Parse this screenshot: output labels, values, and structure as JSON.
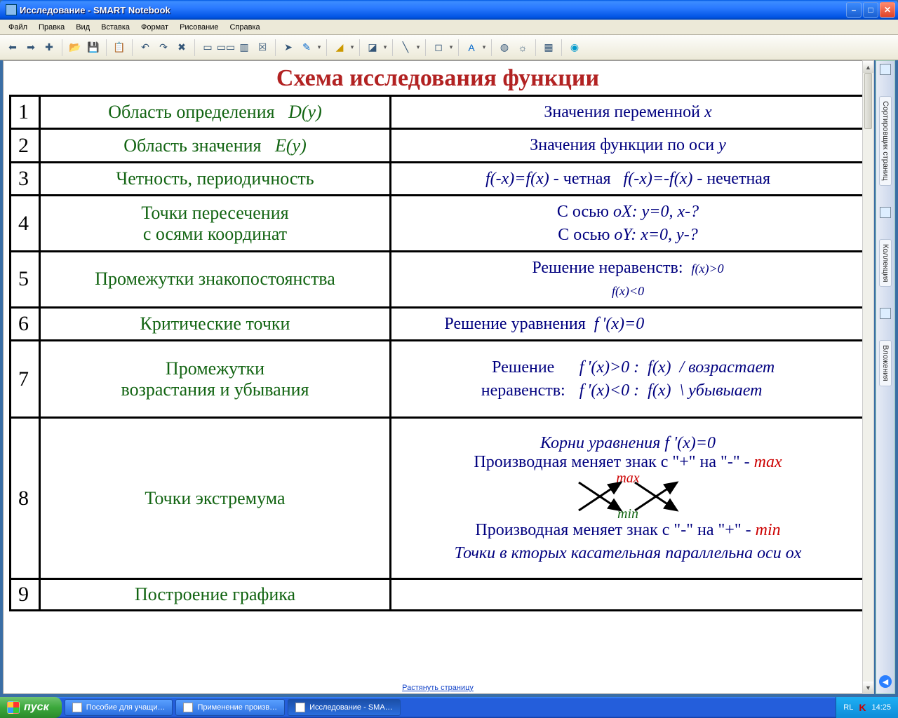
{
  "window": {
    "title": "Исследование  - SMART Notebook"
  },
  "menu": {
    "items": [
      "Файл",
      "Правка",
      "Вид",
      "Вставка",
      "Формат",
      "Рисование",
      "Справка"
    ]
  },
  "toolbar_icons": [
    "arrow-left-icon",
    "arrow-right-icon",
    "page-add-icon",
    "",
    "folder-open-icon",
    "save-icon",
    "",
    "paste-icon",
    "",
    "undo-icon",
    "redo-icon",
    "delete-icon",
    "",
    "screen-icon",
    "dual-screen-icon",
    "screen-shade-icon",
    "capture-icon",
    "",
    "pointer-icon",
    "pen-icon",
    "",
    "highlighter-icon",
    "",
    "eraser-icon",
    "",
    "line-icon",
    "",
    "shape-icon",
    "",
    "text-icon",
    "",
    "fill-icon",
    "properties-icon",
    "",
    "table-icon",
    "",
    "help-icon"
  ],
  "page": {
    "title": "Схема исследования функции",
    "stretch_label": "Растянуть страницу",
    "rows": [
      {
        "n": "1",
        "left": "Область определения",
        "left_formula": "D(y)",
        "right": "Значения переменной <span class='em'>x</span>"
      },
      {
        "n": "2",
        "left": "Область значения",
        "left_formula": "E(y)",
        "right": "Значения функции по оси <span class='em'>y</span>"
      },
      {
        "n": "3",
        "left": "Четность, периодичность",
        "right": "<span class='em'>f(-x)=f(x)</span> -  четная&nbsp;&nbsp;&nbsp;<span class='em'>f(-x)=-f(x)</span> -  нечетная"
      },
      {
        "n": "4",
        "left": "Точки пересечения<br>с осями координат",
        "right": "С осью <span class='em'>oX: y=0, x-?</span><br>С осью <span class='em'>oY: x=0, y-?</span>"
      },
      {
        "n": "5",
        "left": "Промежутки знакопостоянства",
        "right": "Решение неравенств:&nbsp;&nbsp;<span class='small'>f(x)&gt;0<br>f(x)&lt;0</span>"
      },
      {
        "n": "6",
        "left": "Критические точки",
        "right": "<span style='display:inline-block;text-align:left;width:80%'>Решение уравнения&nbsp;&nbsp;<span class='em'>f&thinsp;'(x)=0</span></span>"
      },
      {
        "n": "7",
        "left": "Промежутки<br>возрастания и убывания",
        "right": "<div style='display:inline-flex;align-items:center;gap:20px'><div>Решение<br>неравенств:</div><div class='lh' style='text-align:left'><span class='em'>f&thinsp;'(x)&gt;0 :&nbsp;&nbsp;f(x)&#8199;/</span>&nbsp;<span class='em'>возрастает</span><br><span class='em'>f&thinsp;'(x)&lt;0 :&nbsp;&nbsp;f(x)&#8199;\\</span>&nbsp;<span class='em'>убывыает</span></div></div>"
      },
      {
        "n": "8",
        "left": "Точки экстремума",
        "right_special": "row8"
      },
      {
        "n": "9",
        "left": "Построение графика",
        "right": ""
      }
    ],
    "row8": {
      "l1": "Корни уравнения f '(x)=0",
      "l2": "Производная меняет знак с \"+\" на \"-\" - ",
      "l2r": "max",
      "l3": "Производная меняет знак с \"-\" на \"+\" - ",
      "l3r": "min",
      "l4": "Точки в кторых касательная параллельна оси ox",
      "max": "max",
      "min": "min"
    }
  },
  "side": {
    "tabs": [
      "Сортировщик страниц",
      "Коллекция",
      "Вложения"
    ]
  },
  "taskbar": {
    "start": "пуск",
    "tasks": [
      {
        "label": "Пособие для учащи…"
      },
      {
        "label": "Применение произв…"
      },
      {
        "label": "Исследование - SMA…",
        "active": true
      }
    ],
    "lang": "RL",
    "time": "14:25"
  },
  "colors": {
    "title": "#b22222",
    "leftText": "#126412",
    "rightText": "#00007f",
    "red": "#c00",
    "green": "#126412",
    "border": "#000"
  }
}
